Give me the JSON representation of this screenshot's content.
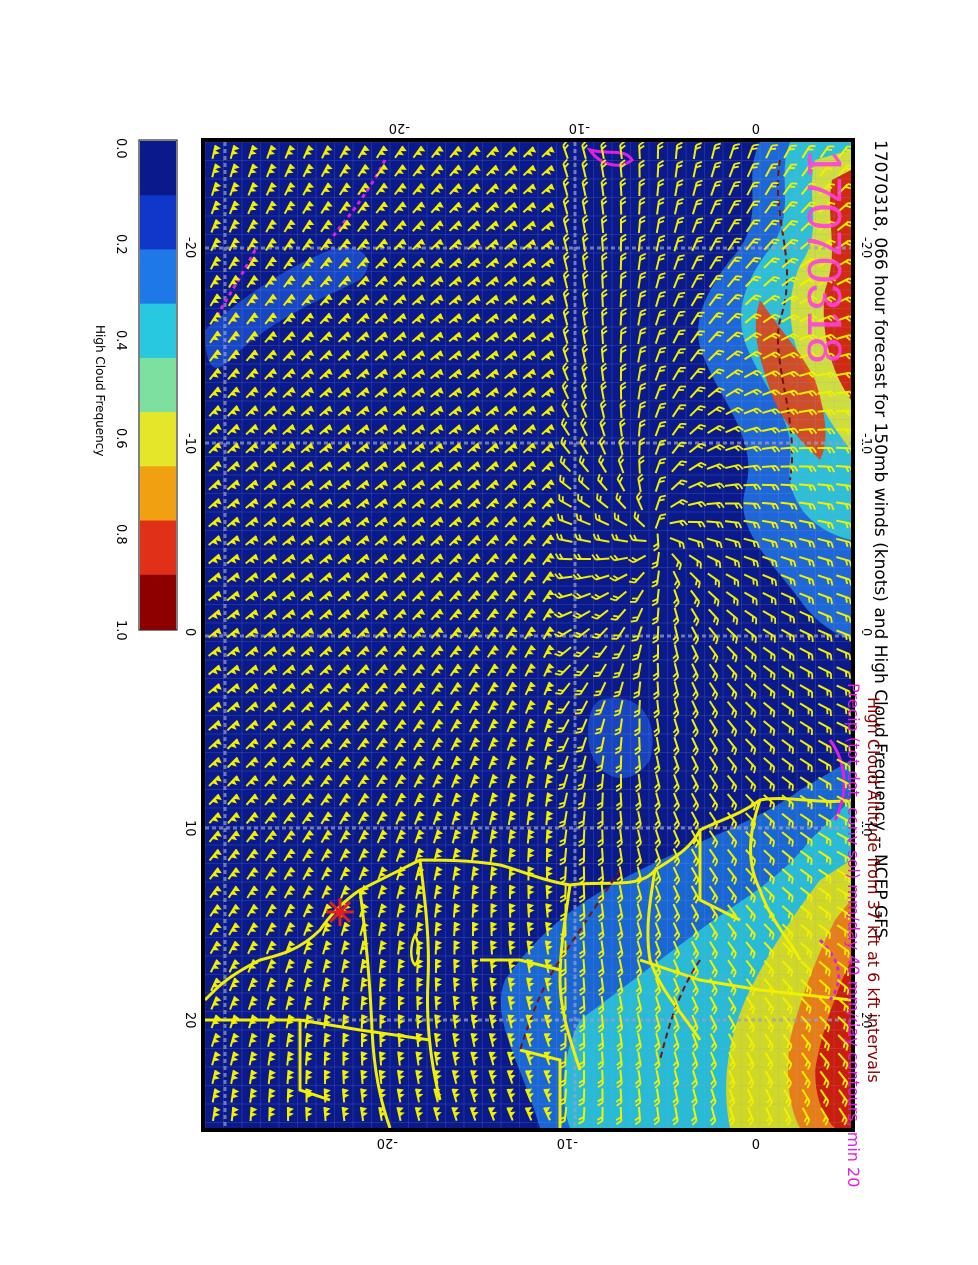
{
  "title": "17070318, 066 hour forecast for 150mb winds (knots) and High Cloud Frequency -- NCEP GFS",
  "stamp": "17070318",
  "caption_line1": "High Cloud Altitude from 37 kft at 6 kft intervals",
  "caption_line2": "Precip (tot dot, conv sol) mm/day 40 mm/day contours, min 20",
  "colorbar": {
    "label": "High Cloud Frequency",
    "ticks": [
      "0.0",
      "0.2",
      "0.4",
      "0.6",
      "0.8",
      "1.0"
    ],
    "colors": [
      "#0a1a8c",
      "#1038c8",
      "#1e78e6",
      "#28c8e0",
      "#7ee0a0",
      "#e6e628",
      "#f0a010",
      "#e03018",
      "#8c0000"
    ]
  },
  "axes": {
    "lon_ticks": [
      "-20",
      "-10",
      "0",
      "10",
      "20"
    ],
    "lat_ticks_top": [
      "-20",
      "-10",
      "0"
    ],
    "lat_ticks_bottom": [
      "-20",
      "-10",
      "0"
    ]
  },
  "colors": {
    "ocean": "#0a1a8c",
    "coast": "#f0f000",
    "barb": "#f0f000",
    "precip": "#e020e0",
    "altitude_contour": "#7a1010"
  },
  "marker": "storm-asterisk"
}
